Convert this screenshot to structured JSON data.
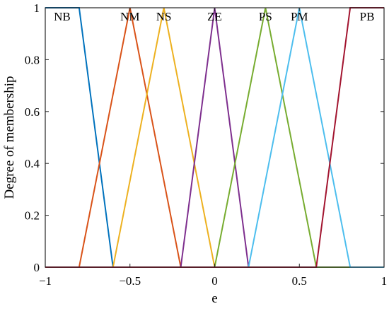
{
  "chart_data": {
    "type": "line",
    "title": "",
    "xlabel": "e",
    "ylabel": "Degree of membership",
    "xlim": [
      -1,
      1
    ],
    "ylim": [
      0,
      1
    ],
    "x_ticks": [
      -1,
      -0.5,
      0,
      0.5,
      1
    ],
    "x_tick_labels": [
      "−1",
      "−0.5",
      "0",
      "0.5",
      "1"
    ],
    "y_ticks": [
      0,
      0.2,
      0.4,
      0.6,
      0.8,
      1
    ],
    "y_tick_labels": [
      "0",
      "0.2",
      "0.4",
      "0.6",
      "0.8",
      "1"
    ],
    "grid": false,
    "legend": "none",
    "series": [
      {
        "name": "NB",
        "color": "#0072BD",
        "points": [
          [
            -1,
            1
          ],
          [
            -0.8,
            1
          ],
          [
            -0.6,
            0
          ],
          [
            1,
            0
          ]
        ],
        "label_at": [
          -0.9,
          1
        ]
      },
      {
        "name": "NM",
        "color": "#D95319",
        "points": [
          [
            -1,
            0
          ],
          [
            -0.8,
            0
          ],
          [
            -0.5,
            1
          ],
          [
            -0.2,
            0
          ],
          [
            1,
            0
          ]
        ],
        "label_at": [
          -0.5,
          1
        ]
      },
      {
        "name": "NS",
        "color": "#EDB120",
        "points": [
          [
            -1,
            0
          ],
          [
            -0.6,
            0
          ],
          [
            -0.3,
            1
          ],
          [
            0,
            0
          ],
          [
            1,
            0
          ]
        ],
        "label_at": [
          -0.3,
          1
        ]
      },
      {
        "name": "ZE",
        "color": "#7E2F8E",
        "points": [
          [
            -1,
            0
          ],
          [
            -0.2,
            0
          ],
          [
            0,
            1
          ],
          [
            0.2,
            0
          ],
          [
            1,
            0
          ]
        ],
        "label_at": [
          0,
          1
        ]
      },
      {
        "name": "PS",
        "color": "#77AC30",
        "points": [
          [
            -1,
            0
          ],
          [
            0,
            0
          ],
          [
            0.3,
            1
          ],
          [
            0.6,
            0
          ],
          [
            1,
            0
          ]
        ],
        "label_at": [
          0.3,
          1
        ]
      },
      {
        "name": "PM",
        "color": "#4DBEEE",
        "points": [
          [
            -1,
            0
          ],
          [
            0.2,
            0
          ],
          [
            0.5,
            1
          ],
          [
            0.8,
            0
          ],
          [
            1,
            0
          ]
        ],
        "label_at": [
          0.5,
          1
        ]
      },
      {
        "name": "PB",
        "color": "#A2142F",
        "points": [
          [
            -1,
            0
          ],
          [
            0.6,
            0
          ],
          [
            0.8,
            1
          ],
          [
            1,
            1
          ]
        ],
        "label_at": [
          0.9,
          1
        ]
      }
    ]
  }
}
